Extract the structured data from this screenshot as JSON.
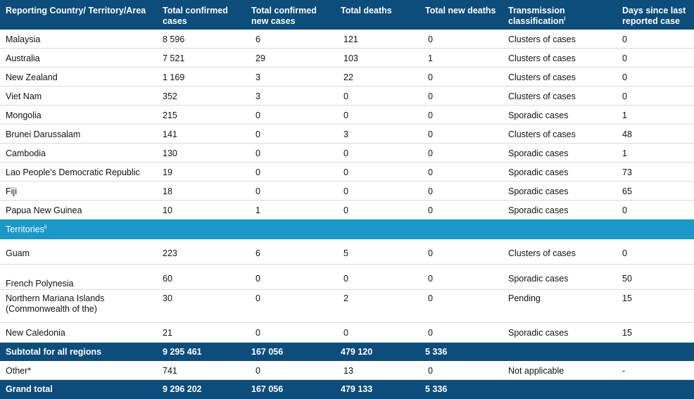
{
  "header": {
    "col_country": "Reporting Country/ Territory/Area",
    "col_total_cases_l1": "Total confirmed",
    "col_total_cases_l2": "cases",
    "col_new_cases_l1": "Total confirmed",
    "col_new_cases_l2": "new cases",
    "col_deaths": "Total deaths",
    "col_new_deaths": "Total new deaths",
    "col_transmission_l1": "Transmission",
    "col_transmission_l2": "classification",
    "col_transmission_sup": "i",
    "col_days_l1": "Days since last",
    "col_days_l2": "reported case"
  },
  "rows": [
    {
      "country": "Malaysia",
      "cases": "8 596",
      "new_cases": "6",
      "deaths": "121",
      "new_deaths": "0",
      "transmission": "Clusters of cases",
      "days": "0"
    },
    {
      "country": "Australia",
      "cases": "7 521",
      "new_cases": "29",
      "deaths": "103",
      "new_deaths": "1",
      "transmission": "Clusters of cases",
      "days": "0"
    },
    {
      "country": "New Zealand",
      "cases": "1 169",
      "new_cases": "3",
      "deaths": "22",
      "new_deaths": "0",
      "transmission": "Clusters of cases",
      "days": "0"
    },
    {
      "country": "Viet Nam",
      "cases": "352",
      "new_cases": "3",
      "deaths": "0",
      "new_deaths": "0",
      "transmission": "Clusters of cases",
      "days": "0"
    },
    {
      "country": "Mongolia",
      "cases": "215",
      "new_cases": "0",
      "deaths": "0",
      "new_deaths": "0",
      "transmission": "Sporadic cases",
      "days": "1"
    },
    {
      "country": "Brunei Darussalam",
      "cases": "141",
      "new_cases": "0",
      "deaths": "3",
      "new_deaths": "0",
      "transmission": "Clusters of cases",
      "days": "48"
    },
    {
      "country": "Cambodia",
      "cases": "130",
      "new_cases": "0",
      "deaths": "0",
      "new_deaths": "0",
      "transmission": "Sporadic cases",
      "days": "1"
    },
    {
      "country": "Lao People's Democratic Republic",
      "cases": "19",
      "new_cases": "0",
      "deaths": "0",
      "new_deaths": "0",
      "transmission": "Sporadic cases",
      "days": "73"
    },
    {
      "country": "Fiji",
      "cases": "18",
      "new_cases": "0",
      "deaths": "0",
      "new_deaths": "0",
      "transmission": "Sporadic cases",
      "days": "65"
    },
    {
      "country": "Papua New Guinea",
      "cases": "10",
      "new_cases": "1",
      "deaths": "0",
      "new_deaths": "0",
      "transmission": "Sporadic cases",
      "days": "0"
    }
  ],
  "territories": {
    "label": "Territories",
    "sup": "ii",
    "rows": [
      {
        "country": "Guam",
        "cases": "223",
        "new_cases": "6",
        "deaths": "5",
        "new_deaths": "0",
        "transmission": "Clusters of cases",
        "days": "0"
      },
      {
        "country": "French Polynesia",
        "cases": "60",
        "new_cases": "0",
        "deaths": "0",
        "new_deaths": "0",
        "transmission": "Sporadic cases",
        "days": "50"
      },
      {
        "country_l1": "Northern Mariana Islands",
        "country_l2": "(Commonwealth of the)",
        "cases": "30",
        "new_cases": "0",
        "deaths": "2",
        "new_deaths": "0",
        "transmission": "Pending",
        "days": "15"
      },
      {
        "country": "New Caledonia",
        "cases": "21",
        "new_cases": "0",
        "deaths": "0",
        "new_deaths": "0",
        "transmission": "Sporadic cases",
        "days": "15"
      }
    ]
  },
  "subtotal": {
    "label": "Subtotal for all regions",
    "cases": "9 295 461",
    "new_cases": "167 056",
    "deaths": "479 120",
    "new_deaths": "5 336"
  },
  "other": {
    "label": "Other*",
    "cases": "741",
    "new_cases": "0",
    "deaths": "13",
    "new_deaths": "0",
    "transmission": "Not applicable",
    "days": "-"
  },
  "grand_total": {
    "label": "Grand total",
    "cases": "9 296 202",
    "new_cases": "167 056",
    "deaths": "479 133",
    "new_deaths": "5 336"
  }
}
